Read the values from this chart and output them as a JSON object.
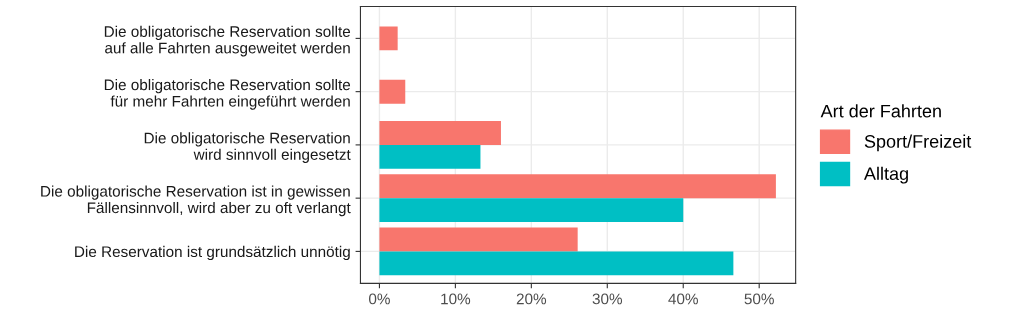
{
  "chart_data": {
    "type": "bar",
    "orientation": "horizontal",
    "categories": [
      "Die obligatorische Reservation sollte\nauf alle Fahrten ausgeweitet werden",
      "Die obligatorische Reservation sollte\nfür mehr Fahrten eingeführt werden",
      "Die obligatorische Reservation\nwird sinnvoll eingesetzt",
      "Die obligatorische Reservation ist in gewissen\nFällensinnvoll, wird aber zu oft verlangt",
      "Die Reservation ist grundsätzlich unnötig"
    ],
    "series": [
      {
        "name": "Sport/Freizeit",
        "color": "#f8766d",
        "values": [
          2.4,
          3.4,
          16.0,
          52.2,
          26.1
        ]
      },
      {
        "name": "Alltag",
        "color": "#00bfc4",
        "values": [
          null,
          null,
          13.3,
          40.0,
          46.6
        ]
      }
    ],
    "legend_title": "Art der Fahrten",
    "legend": "right",
    "xlim": [
      -2.5,
      54.8
    ],
    "xticks": [
      {
        "value": 0,
        "label": "0%"
      },
      {
        "value": 10,
        "label": "10%"
      },
      {
        "value": 20,
        "label": "20%"
      },
      {
        "value": 30,
        "label": "30%"
      },
      {
        "value": 40,
        "label": "40%"
      },
      {
        "value": 50,
        "label": "50%"
      }
    ],
    "grid": true
  }
}
